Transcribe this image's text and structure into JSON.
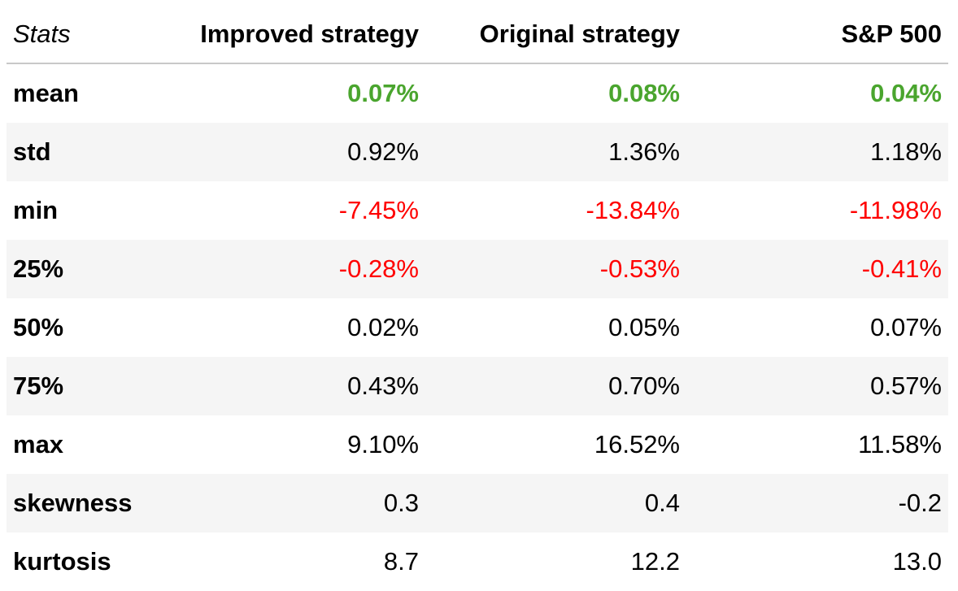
{
  "table": {
    "headers": [
      "Stats",
      "Improved strategy",
      "Original strategy",
      "S&P 500"
    ],
    "rows": [
      {
        "label": "mean",
        "values": [
          "0.07%",
          "0.08%",
          "0.04%"
        ]
      },
      {
        "label": "std",
        "values": [
          "0.92%",
          "1.36%",
          "1.18%"
        ]
      },
      {
        "label": "min",
        "values": [
          "-7.45%",
          "-13.84%",
          "-11.98%"
        ]
      },
      {
        "label": "25%",
        "values": [
          "-0.28%",
          "-0.53%",
          "-0.41%"
        ]
      },
      {
        "label": "50%",
        "values": [
          "0.02%",
          "0.05%",
          "0.07%"
        ]
      },
      {
        "label": "75%",
        "values": [
          "0.43%",
          "0.70%",
          "0.57%"
        ]
      },
      {
        "label": "max",
        "values": [
          "9.10%",
          "16.52%",
          "11.58%"
        ]
      },
      {
        "label": "skewness",
        "values": [
          "0.3",
          "0.4",
          "-0.2"
        ]
      },
      {
        "label": "kurtosis",
        "values": [
          "8.7",
          "12.2",
          "13.0"
        ]
      }
    ]
  },
  "colors": {
    "positive_highlight": "#4aa52e",
    "negative": "#ff0000",
    "row_shade": "#f5f5f5",
    "header_rule": "#c8c8c8"
  }
}
